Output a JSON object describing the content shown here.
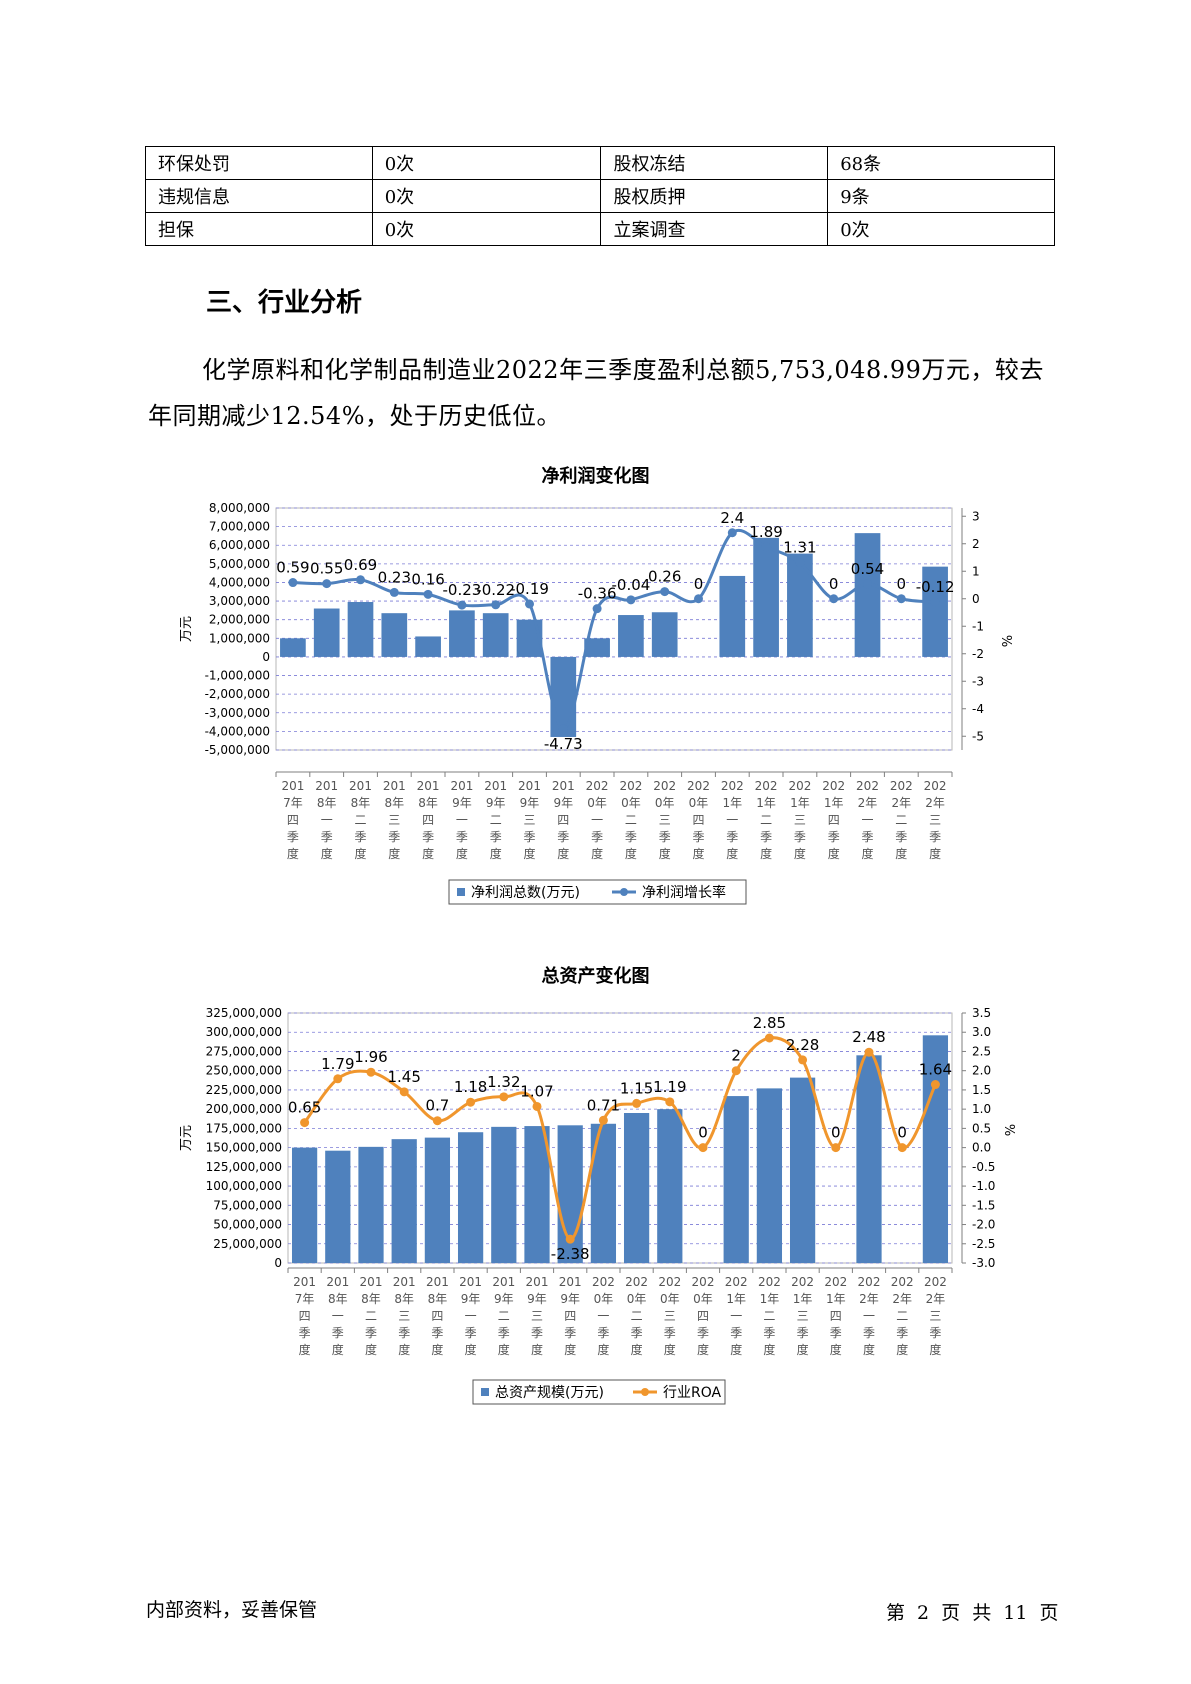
{
  "info_table": [
    [
      "环保处罚",
      "0次",
      "股权冻结",
      "68条"
    ],
    [
      "违规信息",
      "0次",
      "股权质押",
      "9条"
    ],
    [
      "担保",
      "0次",
      "立案调查",
      "0次"
    ]
  ],
  "section_heading": "三、行业分析",
  "paragraph": "化学原料和化学制品制造业2022年三季度盈利总额5,753,048.99万元，较去年同期减少12.54%，处于历史低位。",
  "footer": {
    "left": "内部资料，妥善保管",
    "right": "第 2 页  共 11 页"
  },
  "chart_data": [
    {
      "type": "bar+line",
      "title": "净利润变化图",
      "categories": [
        "2017年四季度",
        "2018年一季度",
        "2018年二季度",
        "2018年三季度",
        "2018年四季度",
        "2019年一季度",
        "2019年二季度",
        "2019年三季度",
        "2019年四季度",
        "2020年一季度",
        "2020年二季度",
        "2020年三季度",
        "2020年四季度",
        "2021年一季度",
        "2021年二季度",
        "2021年三季度",
        "2021年四季度",
        "2022年一季度",
        "2022年二季度",
        "2022年三季度"
      ],
      "category_lines": [
        [
          "201",
          "7年",
          "四",
          "季",
          "度"
        ],
        [
          "201",
          "8年",
          "一",
          "季",
          "度"
        ],
        [
          "201",
          "8年",
          "二",
          "季",
          "度"
        ],
        [
          "201",
          "8年",
          "三",
          "季",
          "度"
        ],
        [
          "201",
          "8年",
          "四",
          "季",
          "度"
        ],
        [
          "201",
          "9年",
          "一",
          "季",
          "度"
        ],
        [
          "201",
          "9年",
          "二",
          "季",
          "度"
        ],
        [
          "201",
          "9年",
          "三",
          "季",
          "度"
        ],
        [
          "201",
          "9年",
          "四",
          "季",
          "度"
        ],
        [
          "202",
          "0年",
          "一",
          "季",
          "度"
        ],
        [
          "202",
          "0年",
          "二",
          "季",
          "度"
        ],
        [
          "202",
          "0年",
          "三",
          "季",
          "度"
        ],
        [
          "202",
          "0年",
          "四",
          "季",
          "度"
        ],
        [
          "202",
          "1年",
          "一",
          "季",
          "度"
        ],
        [
          "202",
          "1年",
          "二",
          "季",
          "度"
        ],
        [
          "202",
          "1年",
          "三",
          "季",
          "度"
        ],
        [
          "202",
          "1年",
          "四",
          "季",
          "度"
        ],
        [
          "202",
          "2年",
          "一",
          "季",
          "度"
        ],
        [
          "202",
          "2年",
          "二",
          "季",
          "度"
        ],
        [
          "202",
          "2年",
          "三",
          "季",
          "度"
        ]
      ],
      "series": [
        {
          "name": "净利润总数(万元)",
          "kind": "bar",
          "axis": "left",
          "color": "#4f81bd",
          "values": [
            1000000,
            2600000,
            2950000,
            2350000,
            1100000,
            2500000,
            2350000,
            2000000,
            -4300000,
            1000000,
            2250000,
            2400000,
            null,
            4350000,
            6400000,
            5550000,
            null,
            6650000,
            null,
            4850000
          ]
        },
        {
          "name": "净利润增长率",
          "kind": "line",
          "axis": "right",
          "color": "#4f81bd",
          "values": [
            0.59,
            0.55,
            0.69,
            0.23,
            0.16,
            -0.23,
            -0.22,
            -0.19,
            -4.73,
            -0.36,
            -0.04,
            0.26,
            0,
            2.4,
            1.89,
            1.31,
            0,
            0.54,
            0,
            -0.12
          ],
          "labels": [
            "0.59",
            "0.55",
            "0.69",
            "0.23",
            "0.16",
            "-0.23",
            "-0.22",
            "-0.19",
            "-4.73",
            "-0.36",
            "-0.04",
            "0.26",
            "0",
            "2.4",
            "1.89",
            "1.31",
            "0",
            "0.54",
            "0",
            "-0.12"
          ]
        }
      ],
      "ylabel": "万元",
      "y2label": "%",
      "yticks": [
        "8,000,000",
        "7,000,000",
        "6,000,000",
        "5,000,000",
        "4,000,000",
        "3,000,000",
        "2,000,000",
        "1,000,000",
        "0",
        "-1,000,000",
        "-2,000,000",
        "-3,000,000",
        "-4,000,000",
        "-5,000,000"
      ],
      "ylim": [
        -5000000,
        8000000
      ],
      "y2ticks": [
        "3",
        "2",
        "1",
        "0",
        "-1",
        "-2",
        "-3",
        "-4",
        "-5"
      ],
      "y2lim": [
        -5.5,
        3.3
      ],
      "grid": true,
      "legend": "bottom"
    },
    {
      "type": "bar+line",
      "title": "总资产变化图",
      "categories": [
        "2017年四季度",
        "2018年一季度",
        "2018年二季度",
        "2018年三季度",
        "2018年四季度",
        "2019年一季度",
        "2019年二季度",
        "2019年三季度",
        "2019年四季度",
        "2020年一季度",
        "2020年二季度",
        "2020年三季度",
        "2020年四季度",
        "2021年一季度",
        "2021年二季度",
        "2021年三季度",
        "2021年四季度",
        "2022年一季度",
        "2022年二季度",
        "2022年三季度"
      ],
      "category_lines": [
        [
          "201",
          "7年",
          "四",
          "季",
          "度"
        ],
        [
          "201",
          "8年",
          "一",
          "季",
          "度"
        ],
        [
          "201",
          "8年",
          "二",
          "季",
          "度"
        ],
        [
          "201",
          "8年",
          "三",
          "季",
          "度"
        ],
        [
          "201",
          "8年",
          "四",
          "季",
          "度"
        ],
        [
          "201",
          "9年",
          "一",
          "季",
          "度"
        ],
        [
          "201",
          "9年",
          "二",
          "季",
          "度"
        ],
        [
          "201",
          "9年",
          "三",
          "季",
          "度"
        ],
        [
          "201",
          "9年",
          "四",
          "季",
          "度"
        ],
        [
          "202",
          "0年",
          "一",
          "季",
          "度"
        ],
        [
          "202",
          "0年",
          "二",
          "季",
          "度"
        ],
        [
          "202",
          "0年",
          "三",
          "季",
          "度"
        ],
        [
          "202",
          "0年",
          "四",
          "季",
          "度"
        ],
        [
          "202",
          "1年",
          "一",
          "季",
          "度"
        ],
        [
          "202",
          "1年",
          "二",
          "季",
          "度"
        ],
        [
          "202",
          "1年",
          "三",
          "季",
          "度"
        ],
        [
          "202",
          "1年",
          "四",
          "季",
          "度"
        ],
        [
          "202",
          "2年",
          "一",
          "季",
          "度"
        ],
        [
          "202",
          "2年",
          "二",
          "季",
          "度"
        ],
        [
          "202",
          "2年",
          "三",
          "季",
          "度"
        ]
      ],
      "series": [
        {
          "name": "总资产规模(万元)",
          "kind": "bar",
          "axis": "left",
          "color": "#4f81bd",
          "values": [
            150000000,
            146000000,
            151000000,
            161000000,
            163000000,
            170000000,
            177000000,
            178000000,
            179000000,
            181000000,
            195000000,
            200000000,
            null,
            217000000,
            227000000,
            241000000,
            null,
            270000000,
            null,
            296000000
          ]
        },
        {
          "name": "行业ROA",
          "kind": "line",
          "axis": "right",
          "color": "#f0962d",
          "values": [
            0.65,
            1.79,
            1.96,
            1.45,
            0.7,
            1.18,
            1.32,
            1.07,
            -2.38,
            0.71,
            1.15,
            1.19,
            0,
            2,
            2.85,
            2.28,
            0,
            2.48,
            0,
            1.64
          ],
          "labels": [
            "0.65",
            "1.79",
            "1.96",
            "1.45",
            "0.7",
            "1.18",
            "1.32",
            "1.07",
            "-2.38",
            "0.71",
            "1.15",
            "1.19",
            "0",
            "2",
            "2.85",
            "2.28",
            "0",
            "2.48",
            "0",
            "1.64"
          ]
        }
      ],
      "ylabel": "万元",
      "y2label": "%",
      "yticks": [
        "325,000,000",
        "300,000,000",
        "275,000,000",
        "250,000,000",
        "225,000,000",
        "200,000,000",
        "175,000,000",
        "150,000,000",
        "125,000,000",
        "100,000,000",
        "75,000,000",
        "50,000,000",
        "25,000,000",
        "0"
      ],
      "ylim": [
        0,
        325000000
      ],
      "y2ticks": [
        "3.5",
        "3.0",
        "2.5",
        "2.0",
        "1.5",
        "1.0",
        "0.5",
        "0.0",
        "-0.5",
        "-1.0",
        "-1.5",
        "-2.0",
        "-2.5",
        "-3.0"
      ],
      "y2lim": [
        -3.0,
        3.5
      ],
      "grid": true,
      "legend": "bottom"
    }
  ]
}
